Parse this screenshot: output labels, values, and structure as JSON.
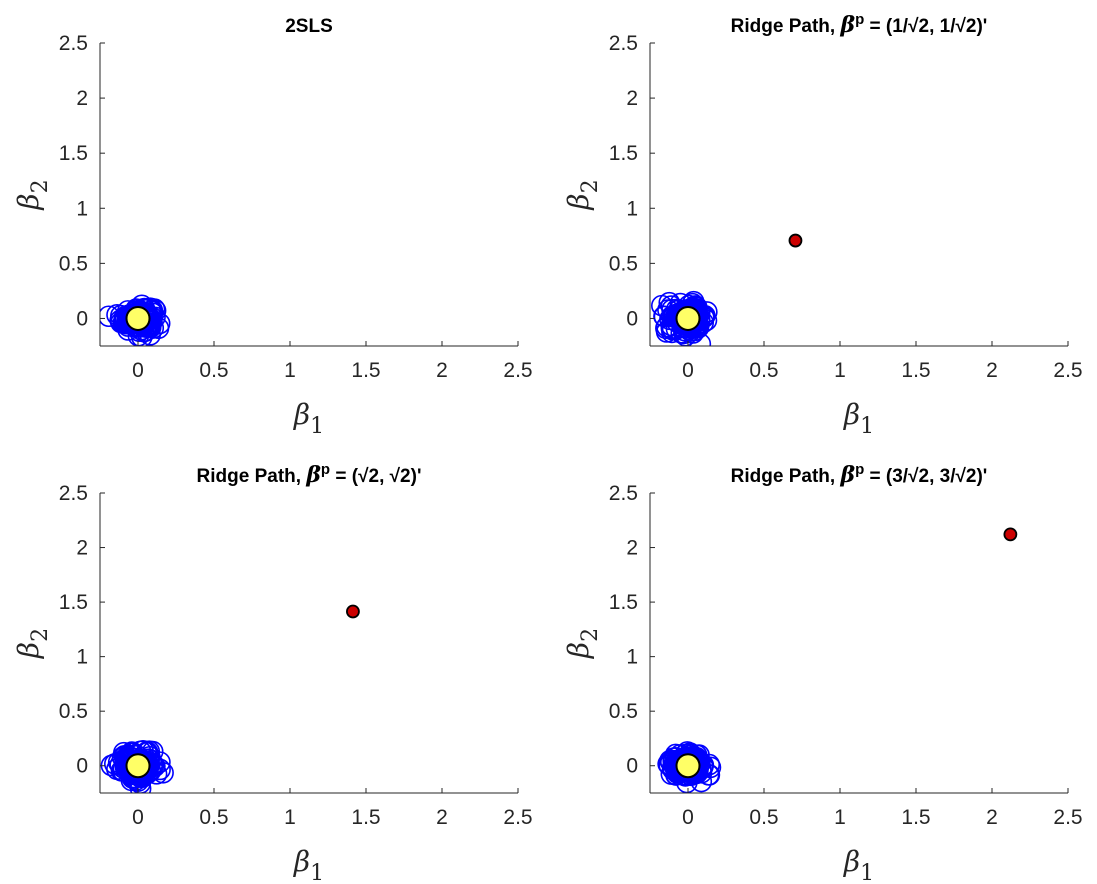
{
  "chart_data": [
    {
      "type": "scatter",
      "title": "2SLS",
      "xlabel": "β",
      "xlabel_sub": "1",
      "ylabel": "β",
      "ylabel_sub": "2",
      "xlim": [
        -0.25,
        2.5
      ],
      "ylim": [
        -0.25,
        2.5
      ],
      "xticks": [
        0,
        0.5,
        1,
        1.5,
        2,
        2.5
      ],
      "yticks": [
        0,
        0.5,
        1,
        1.5,
        2,
        2.5
      ],
      "cloud_spread": 0.055,
      "series": [
        {
          "marker": "open-circle",
          "color": "#0000ff",
          "center": [
            0,
            0
          ]
        },
        {
          "marker": "filled-circle",
          "color": "#ffff66",
          "points": [
            [
              0,
              0
            ]
          ]
        }
      ]
    },
    {
      "type": "scatter",
      "title": "Ridge Path, β^p = (1/√2, 1/√2)'",
      "xlabel": "β",
      "xlabel_sub": "1",
      "ylabel": "β",
      "ylabel_sub": "2",
      "xlim": [
        -0.25,
        2.5
      ],
      "ylim": [
        -0.25,
        2.5
      ],
      "xticks": [
        0,
        0.5,
        1,
        1.5,
        2,
        2.5
      ],
      "yticks": [
        0,
        0.5,
        1,
        1.5,
        2,
        2.5
      ],
      "cloud_spread": 0.065,
      "series": [
        {
          "marker": "open-circle",
          "color": "#0000ff",
          "center": [
            0,
            0
          ]
        },
        {
          "marker": "filled-circle",
          "color": "#ffff66",
          "points": [
            [
              0,
              0
            ]
          ]
        },
        {
          "marker": "filled-circle",
          "color": "#cc0000",
          "points": [
            [
              0.707,
              0.707
            ]
          ]
        }
      ]
    },
    {
      "type": "scatter",
      "title": "Ridge Path, β^p = (√2, √2)'",
      "xlabel": "β",
      "xlabel_sub": "1",
      "ylabel": "β",
      "ylabel_sub": "2",
      "xlim": [
        -0.25,
        2.5
      ],
      "ylim": [
        -0.25,
        2.5
      ],
      "xticks": [
        0,
        0.5,
        1,
        1.5,
        2,
        2.5
      ],
      "yticks": [
        0,
        0.5,
        1,
        1.5,
        2,
        2.5
      ],
      "cloud_spread": 0.065,
      "series": [
        {
          "marker": "open-circle",
          "color": "#0000ff",
          "center": [
            0,
            0
          ]
        },
        {
          "marker": "filled-circle",
          "color": "#ffff66",
          "points": [
            [
              0,
              0
            ]
          ]
        },
        {
          "marker": "filled-circle",
          "color": "#cc0000",
          "points": [
            [
              1.414,
              1.414
            ]
          ]
        }
      ]
    },
    {
      "type": "scatter",
      "title": "Ridge Path, β^p = (3/√2, 3/√2)'",
      "xlabel": "β",
      "xlabel_sub": "1",
      "ylabel": "β",
      "ylabel_sub": "2",
      "xlim": [
        -0.25,
        2.5
      ],
      "ylim": [
        -0.25,
        2.5
      ],
      "xticks": [
        0,
        0.5,
        1,
        1.5,
        2,
        2.5
      ],
      "yticks": [
        0,
        0.5,
        1,
        1.5,
        2,
        2.5
      ],
      "cloud_spread": 0.06,
      "series": [
        {
          "marker": "open-circle",
          "color": "#0000ff",
          "center": [
            0,
            0
          ]
        },
        {
          "marker": "filled-circle",
          "color": "#ffff66",
          "points": [
            [
              0,
              0
            ]
          ]
        },
        {
          "marker": "filled-circle",
          "color": "#cc0000",
          "points": [
            [
              2.121,
              2.121
            ]
          ]
        }
      ]
    }
  ]
}
